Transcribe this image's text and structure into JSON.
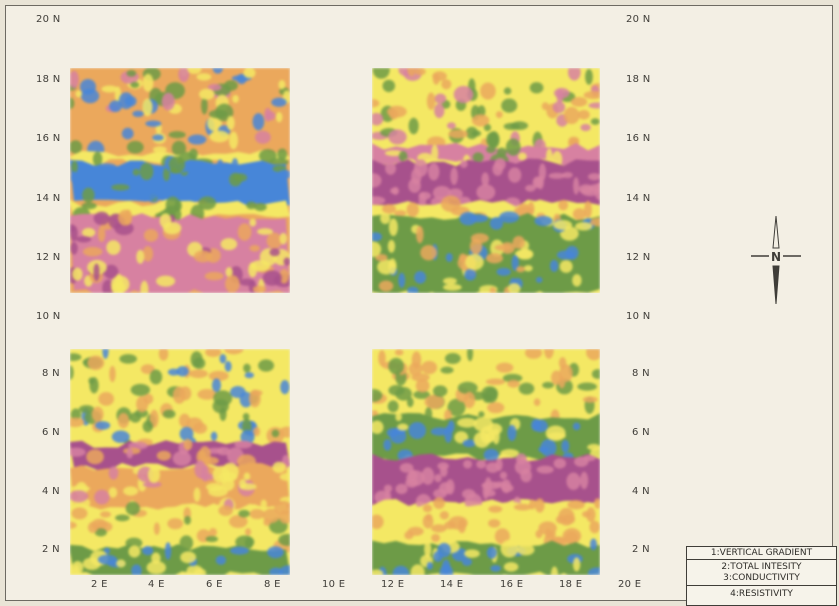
{
  "map": {
    "y_labels_left": [
      "20 N",
      "18 N",
      "16 N",
      "14 N",
      "12 N",
      "10 N",
      "8 N",
      "6 N",
      "4 N",
      "2 N"
    ],
    "y_labels_right": [
      "20 N",
      "18 N",
      "16 N",
      "14 N",
      "12 N",
      "10 N",
      "8 N",
      "6 N",
      "4 N",
      "2 N"
    ],
    "x_labels": [
      "2 E",
      "4 E",
      "6 E",
      "8 E",
      "10 E",
      "12 E",
      "14 E",
      "16 E",
      "18 E",
      "20 E"
    ],
    "compass_letter": "N",
    "legend": [
      {
        "number": "1",
        "label": "VERTICAL GRADIENT"
      },
      {
        "number": "2",
        "label": "TOTAL INTESITY"
      },
      {
        "number": "3",
        "label": "CONDUCTIVITY"
      },
      {
        "number": "4",
        "label": "RESISTIVITY"
      }
    ],
    "palette": {
      "blue": "#4a86d4",
      "green": "#6e9a4a",
      "yellow": "#f3e86a",
      "orange": "#e8a860",
      "magenta": "#a4528a",
      "pink": "#d482a0"
    }
  }
}
